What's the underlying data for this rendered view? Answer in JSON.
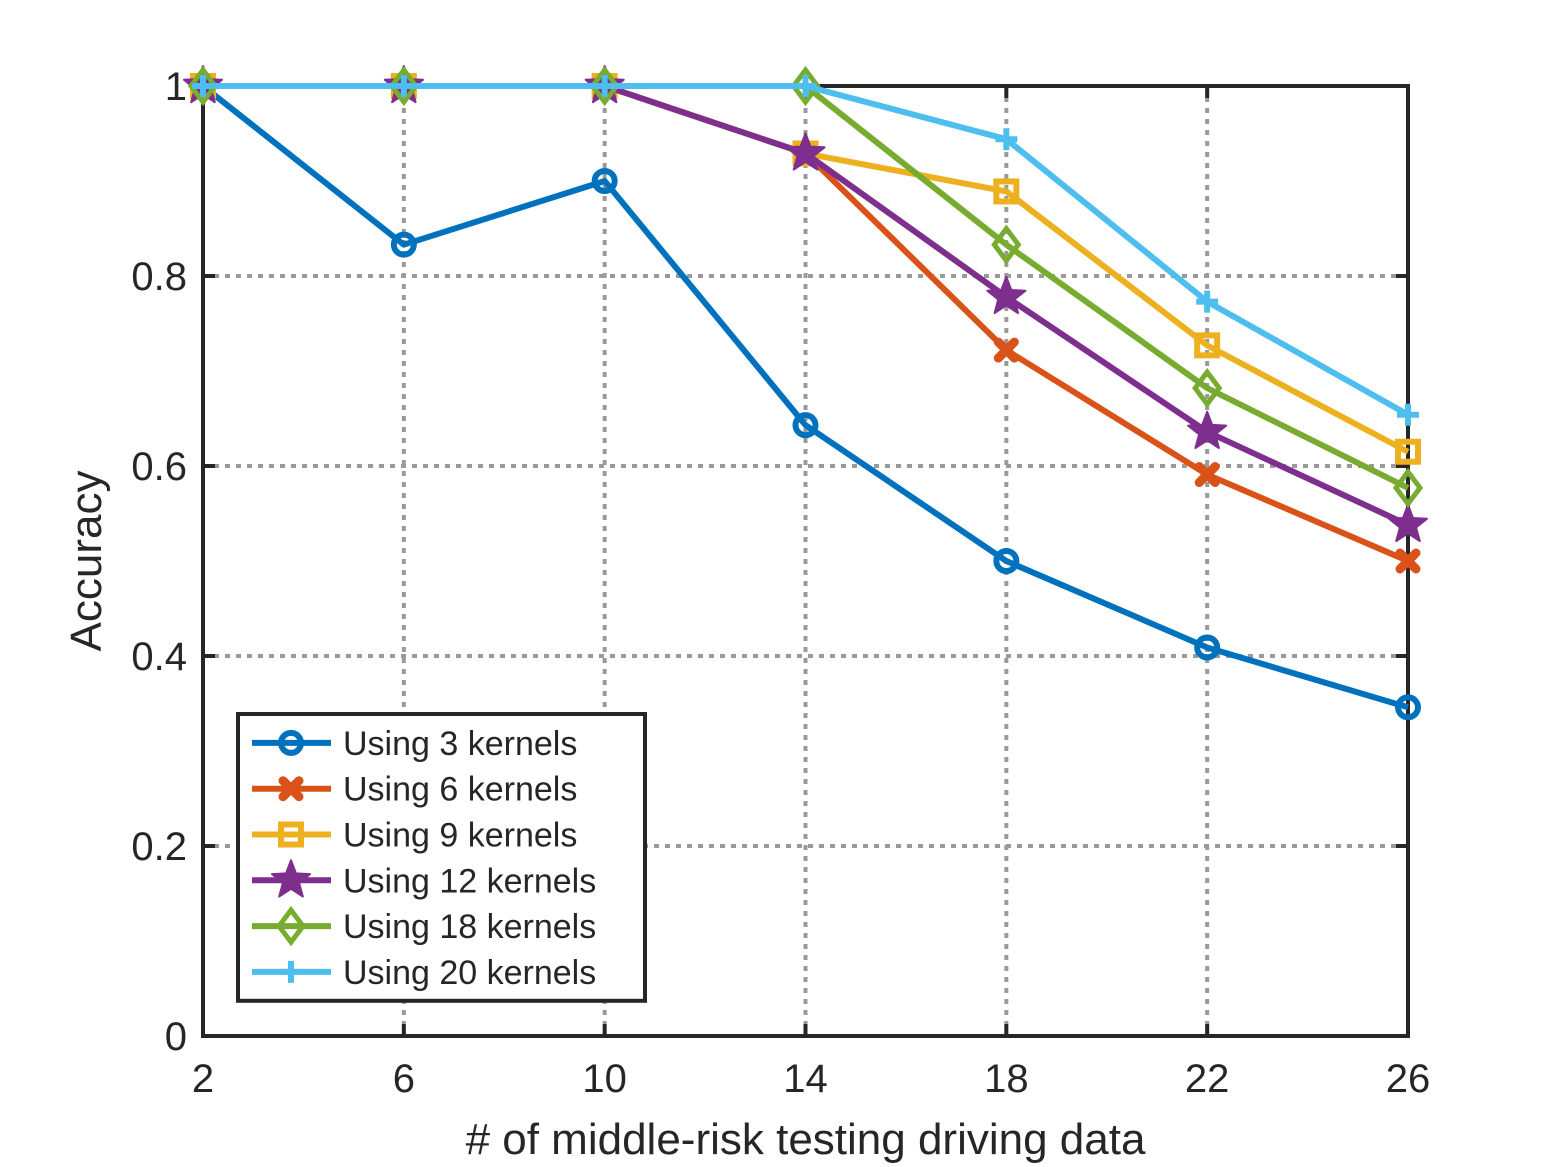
{
  "chart_data": {
    "type": "line",
    "title": "",
    "xlabel": "# of middle-risk testing driving data",
    "ylabel": "Accuracy",
    "x": [
      2,
      6,
      10,
      14,
      18,
      22,
      26
    ],
    "xlim": [
      2,
      26
    ],
    "ylim": [
      0,
      1
    ],
    "x_ticks": [
      "2",
      "6",
      "10",
      "14",
      "18",
      "22",
      "26"
    ],
    "y_ticks": [
      "0",
      "0.2",
      "0.4",
      "0.6",
      "0.8",
      "1"
    ],
    "grid": true,
    "legend_position": "bottom-left",
    "series": [
      {
        "name": "Using 3 kernels",
        "color": "#0072BD",
        "marker": "circle",
        "values": [
          1.0,
          0.833,
          0.9,
          0.643,
          0.5,
          0.409,
          0.346
        ]
      },
      {
        "name": "Using 6 kernels",
        "color": "#D95319",
        "marker": "x-blob",
        "values": [
          1.0,
          1.0,
          1.0,
          0.929,
          0.722,
          0.591,
          0.5
        ]
      },
      {
        "name": "Using 9 kernels",
        "color": "#EDB120",
        "marker": "square",
        "values": [
          1.0,
          1.0,
          1.0,
          0.929,
          0.889,
          0.727,
          0.615
        ]
      },
      {
        "name": "Using 12 kernels",
        "color": "#7E2F8E",
        "marker": "star",
        "values": [
          1.0,
          1.0,
          1.0,
          0.929,
          0.778,
          0.636,
          0.538
        ]
      },
      {
        "name": "Using 18 kernels",
        "color": "#77AC30",
        "marker": "diamond",
        "values": [
          1.0,
          1.0,
          1.0,
          1.0,
          0.833,
          0.682,
          0.577
        ]
      },
      {
        "name": "Using 20 kernels",
        "color": "#4DBEEE",
        "marker": "plus",
        "values": [
          1.0,
          1.0,
          1.0,
          1.0,
          0.944,
          0.773,
          0.654
        ]
      }
    ]
  }
}
